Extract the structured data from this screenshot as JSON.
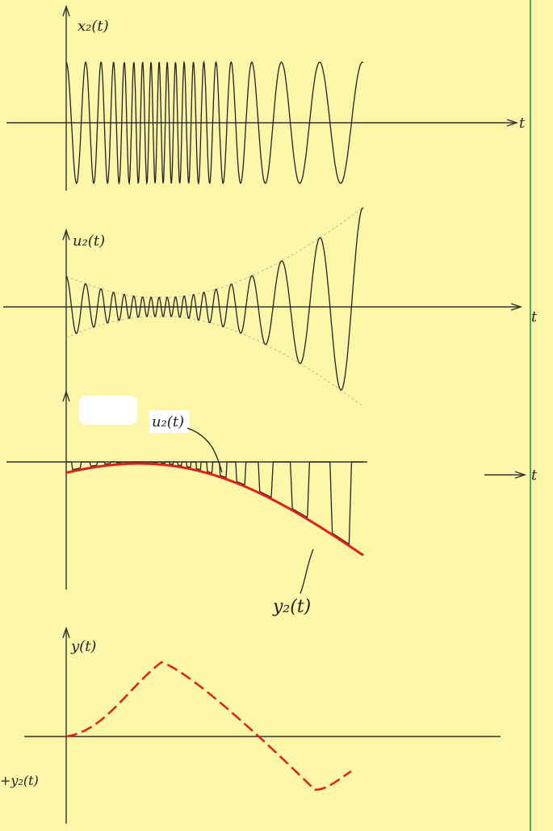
{
  "panels": [
    {
      "label": "x₂(t)",
      "axis_label": "t"
    },
    {
      "label": "u₂(t)",
      "axis_label": "t"
    },
    {
      "label": "u₂(t)",
      "axis_label": "t",
      "annotation": "y₂(t)"
    },
    {
      "label": "y(t)",
      "side_label": "+y₂(t)"
    }
  ]
}
